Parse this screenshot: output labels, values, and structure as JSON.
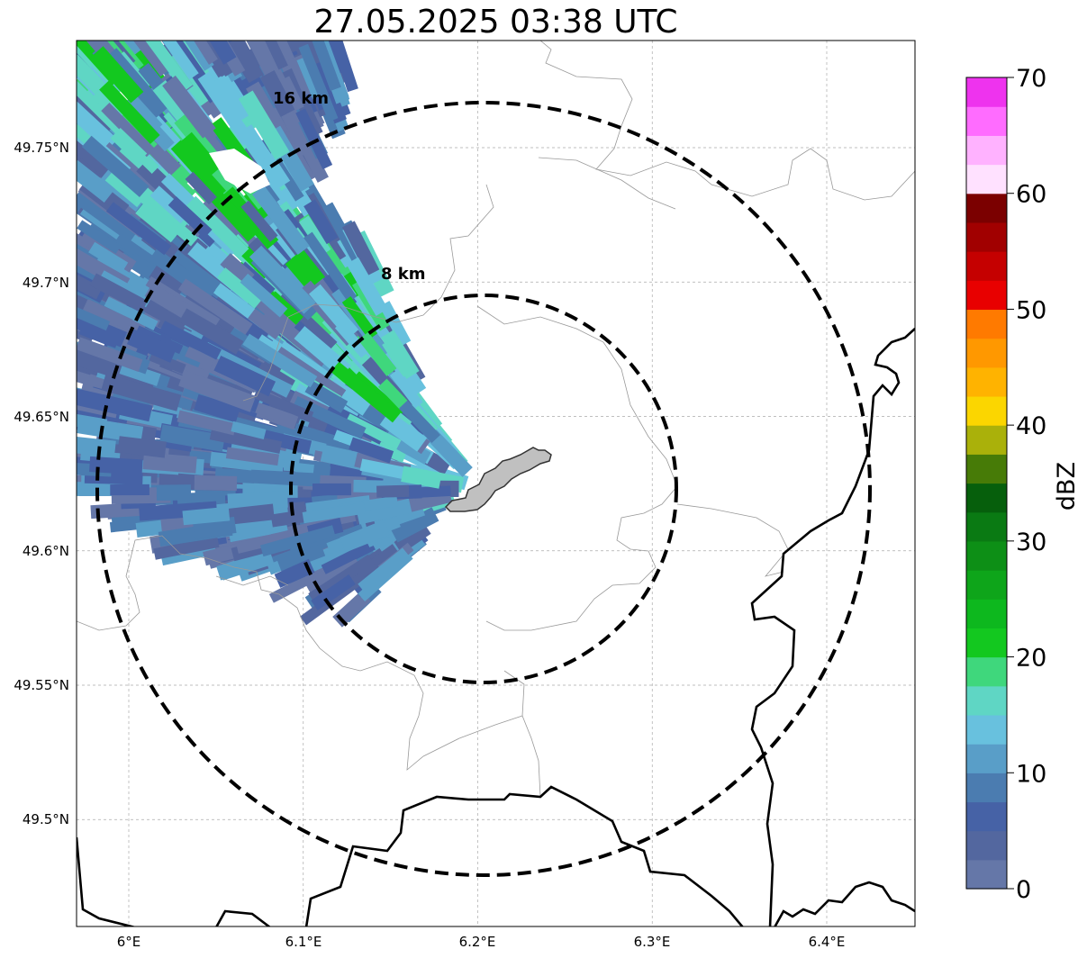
{
  "title": "27.05.2025 03:38 UTC",
  "map": {
    "lon_range": [
      5.97,
      6.45
    ],
    "lat_range": [
      49.46,
      49.79
    ],
    "lon_ticks": [
      {
        "value": 6.0,
        "label": "6°E"
      },
      {
        "value": 6.1,
        "label": "6.1°E"
      },
      {
        "value": 6.2,
        "label": "6.2°E"
      },
      {
        "value": 6.3,
        "label": "6.3°E"
      },
      {
        "value": 6.4,
        "label": "6.4°E"
      }
    ],
    "lat_ticks": [
      {
        "value": 49.75,
        "label": "49.75°N"
      },
      {
        "value": 49.7,
        "label": "49.7°N"
      },
      {
        "value": 49.65,
        "label": "49.65°N"
      },
      {
        "value": 49.6,
        "label": "49.6°N"
      },
      {
        "value": 49.55,
        "label": "49.55°N"
      },
      {
        "value": 49.5,
        "label": "49.5°N"
      }
    ],
    "gridlines": true,
    "range_rings": [
      {
        "label": "8 km",
        "radius_km": 8
      },
      {
        "label": "16 km",
        "radius_km": 16
      }
    ],
    "radar_site_marker": "city outline (grey polygon) at center",
    "reflectivity_echo": "band of weak-moderate echoes (0–25 dBZ) in the west/northwest quadrant"
  },
  "colorbar": {
    "label": "dBZ",
    "min": 0,
    "max": 70,
    "tick_labels": [
      "0",
      "10",
      "20",
      "30",
      "40",
      "50",
      "60",
      "70"
    ],
    "colors": [
      "#6577a8",
      "#53679f",
      "#4662a6",
      "#4b7cb0",
      "#599ec8",
      "#68c1de",
      "#5fd6c4",
      "#3fd77c",
      "#13c81f",
      "#0db81e",
      "#0ea51a",
      "#0d8f16",
      "#0a7a13",
      "#065f0c",
      "#477b07",
      "#aab10a",
      "#fbd600",
      "#ffb300",
      "#ff9800",
      "#ff7a00",
      "#e80000",
      "#c50000",
      "#a10000",
      "#7b0000",
      "#ffe1ff",
      "#ffb2ff",
      "#ff6cff",
      "#ee33ee"
    ]
  }
}
